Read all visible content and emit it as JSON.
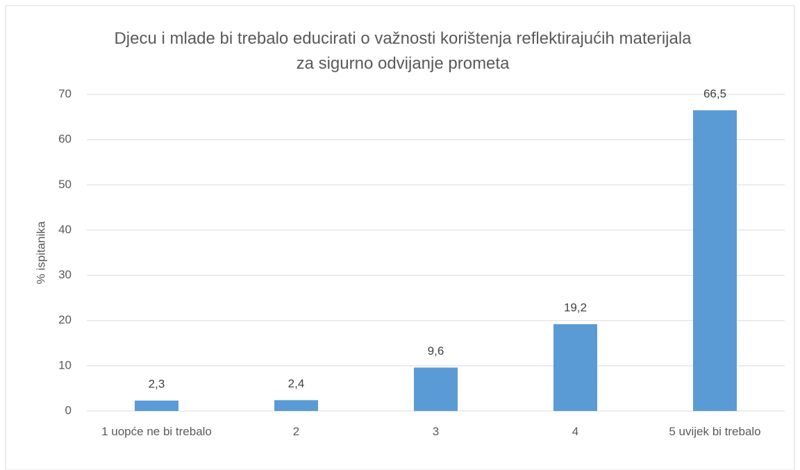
{
  "chart_data": {
    "type": "bar",
    "title": "Djecu i mlade bi trebalo educirati o važnosti korištenja reflektirajućih materijala za sigurno odvijanje prometa",
    "y_label": "% ispitanika",
    "categories": [
      "1 uopće ne bi trebalo",
      "2",
      "3",
      "4",
      "5 uvijek bi trebalo"
    ],
    "values": [
      2.3,
      2.4,
      9.6,
      19.2,
      66.5
    ],
    "value_labels": [
      "2,3",
      "2,4",
      "9,6",
      "19,2",
      "66,5"
    ],
    "color": "#5b9bd5",
    "ylim": [
      0,
      70
    ],
    "yticks": [
      0,
      10,
      20,
      30,
      40,
      50,
      60,
      70
    ],
    "grid": true
  }
}
